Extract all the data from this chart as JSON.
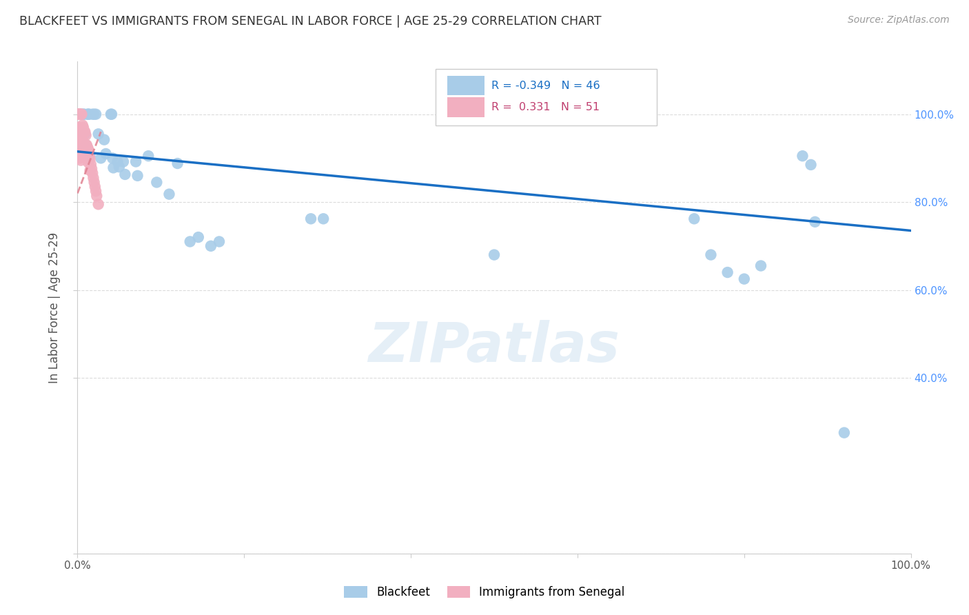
{
  "title": "BLACKFEET VS IMMIGRANTS FROM SENEGAL IN LABOR FORCE | AGE 25-29 CORRELATION CHART",
  "source": "Source: ZipAtlas.com",
  "ylabel": "In Labor Force | Age 25-29",
  "legend_blue_r": "-0.349",
  "legend_blue_n": "46",
  "legend_pink_r": "0.331",
  "legend_pink_n": "51",
  "legend_label_blue": "Blackfeet",
  "legend_label_pink": "Immigrants from Senegal",
  "blue_color": "#a8cce8",
  "pink_color": "#f2afc0",
  "trend_blue_color": "#1a6fc4",
  "trend_pink_color": "#e08090",
  "watermark": "ZIPatlas",
  "blue_points_x": [
    0.005,
    0.007,
    0.008,
    0.009,
    0.01,
    0.012,
    0.013,
    0.014,
    0.015,
    0.018,
    0.02,
    0.022,
    0.025,
    0.028,
    0.032,
    0.034,
    0.04,
    0.041,
    0.042,
    0.043,
    0.048,
    0.05,
    0.055,
    0.057,
    0.07,
    0.072,
    0.085,
    0.095,
    0.11,
    0.12,
    0.135,
    0.145,
    0.16,
    0.17,
    0.28,
    0.295,
    0.5,
    0.74,
    0.76,
    0.78,
    0.8,
    0.82,
    0.87,
    0.88,
    0.885,
    0.92
  ],
  "blue_points_y": [
    1.0,
    1.0,
    1.0,
    0.955,
    0.93,
    1.0,
    1.0,
    1.0,
    0.905,
    1.0,
    1.0,
    1.0,
    0.955,
    0.9,
    0.942,
    0.91,
    1.0,
    1.0,
    0.9,
    0.878,
    0.892,
    0.88,
    0.892,
    0.863,
    0.892,
    0.86,
    0.905,
    0.845,
    0.818,
    0.888,
    0.71,
    0.72,
    0.7,
    0.71,
    0.762,
    0.762,
    0.68,
    0.762,
    0.68,
    0.64,
    0.625,
    0.655,
    0.905,
    0.885,
    0.755,
    0.275
  ],
  "pink_points_x": [
    0.001,
    0.001,
    0.001,
    0.001,
    0.001,
    0.002,
    0.002,
    0.002,
    0.002,
    0.002,
    0.003,
    0.003,
    0.003,
    0.003,
    0.003,
    0.004,
    0.004,
    0.004,
    0.004,
    0.005,
    0.005,
    0.005,
    0.006,
    0.006,
    0.007,
    0.007,
    0.008,
    0.008,
    0.009,
    0.009,
    0.01,
    0.01,
    0.01,
    0.011,
    0.011,
    0.012,
    0.012,
    0.013,
    0.013,
    0.014,
    0.015,
    0.015,
    0.016,
    0.017,
    0.018,
    0.019,
    0.02,
    0.021,
    0.022,
    0.023,
    0.025
  ],
  "pink_points_y": [
    1.0,
    1.0,
    1.0,
    0.97,
    0.93,
    1.0,
    1.0,
    1.0,
    0.955,
    0.92,
    1.0,
    1.0,
    0.965,
    0.94,
    0.9,
    1.0,
    0.955,
    0.93,
    0.895,
    1.0,
    0.96,
    0.918,
    0.975,
    0.94,
    0.97,
    0.935,
    0.96,
    0.925,
    0.96,
    0.92,
    0.952,
    0.93,
    0.905,
    0.93,
    0.908,
    0.925,
    0.9,
    0.92,
    0.89,
    0.905,
    0.898,
    0.872,
    0.886,
    0.876,
    0.866,
    0.855,
    0.845,
    0.835,
    0.825,
    0.814,
    0.795
  ],
  "xlim": [
    0.0,
    1.0
  ],
  "ylim": [
    0.0,
    1.12
  ],
  "blue_trend_x": [
    0.0,
    1.0
  ],
  "blue_trend_y": [
    0.915,
    0.735
  ],
  "pink_trend_x": [
    0.0,
    0.028
  ],
  "pink_trend_y": [
    0.82,
    0.96
  ]
}
